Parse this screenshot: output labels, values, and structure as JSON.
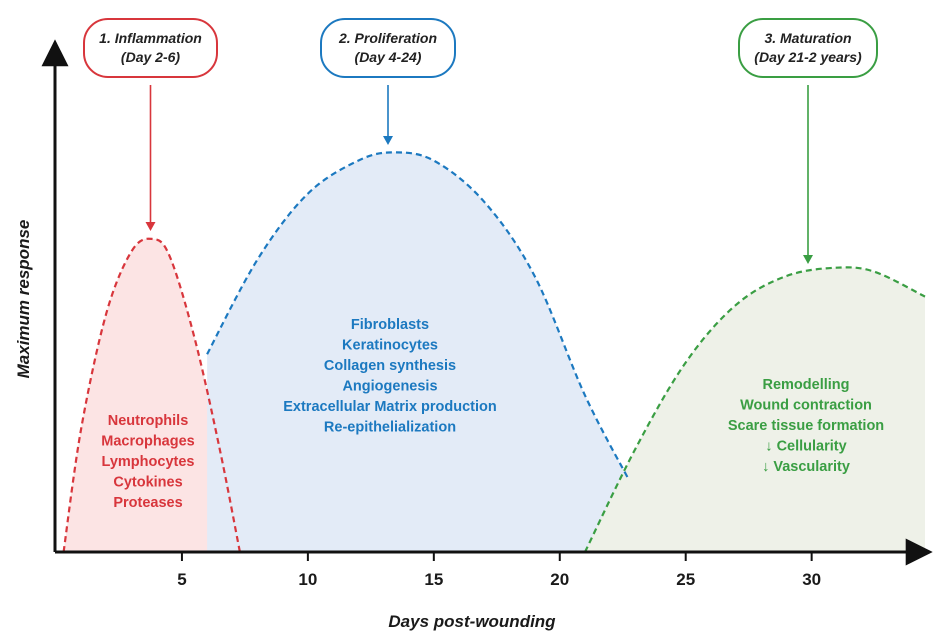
{
  "chart_data": {
    "type": "area",
    "xlabel": "Days post-wounding",
    "ylabel": "Maximum response",
    "x_ticks": [
      5,
      10,
      15,
      20,
      25,
      30
    ],
    "xlim": [
      0,
      34.5
    ],
    "ylim": [
      0,
      1
    ],
    "grid": false,
    "legend": "none",
    "series": [
      {
        "name": "1. Inflammation",
        "key": "inflammation",
        "range_label": "(Day 2-6)",
        "color": "#d8363c",
        "fill": "#fce4e4",
        "x": [
          0.3,
          1,
          2,
          3,
          3.8,
          4.5,
          5.5,
          6.5,
          7.3
        ],
        "y": [
          0.0,
          0.3,
          0.58,
          0.73,
          0.76,
          0.72,
          0.52,
          0.25,
          0.0
        ],
        "items": [
          "Neutrophils",
          "Macrophages",
          "Lymphocytes",
          "Cytokines",
          "Proteases"
        ]
      },
      {
        "name": "2. Proliferation",
        "key": "proliferation",
        "range_label": "(Day 4-24)",
        "color": "#1c79c0",
        "fill": "#e3ebf7",
        "x": [
          6,
          8,
          10,
          12,
          13.4,
          15,
          17,
          19,
          21,
          22.7
        ],
        "y": [
          0.48,
          0.71,
          0.87,
          0.95,
          0.97,
          0.95,
          0.85,
          0.67,
          0.38,
          0.18
        ],
        "items": [
          "Fibroblasts",
          "Keratinocytes",
          "Collagen synthesis",
          "Angiogenesis",
          "Extracellular Matrix production",
          "Re-epithelialization"
        ]
      },
      {
        "name": "3. Maturation",
        "key": "maturation",
        "range_label": "(Day 21-2 years)",
        "color": "#3a9e43",
        "fill": "#eef1e8",
        "x": [
          21,
          23,
          25,
          27,
          29,
          31,
          32.5,
          34.5
        ],
        "y": [
          0.0,
          0.25,
          0.46,
          0.6,
          0.67,
          0.69,
          0.68,
          0.62
        ],
        "items": [
          "Remodelling",
          "Wound contraction",
          "Scare tissue formation",
          "↓ Cellularity",
          "↓ Vascularity"
        ]
      }
    ]
  }
}
